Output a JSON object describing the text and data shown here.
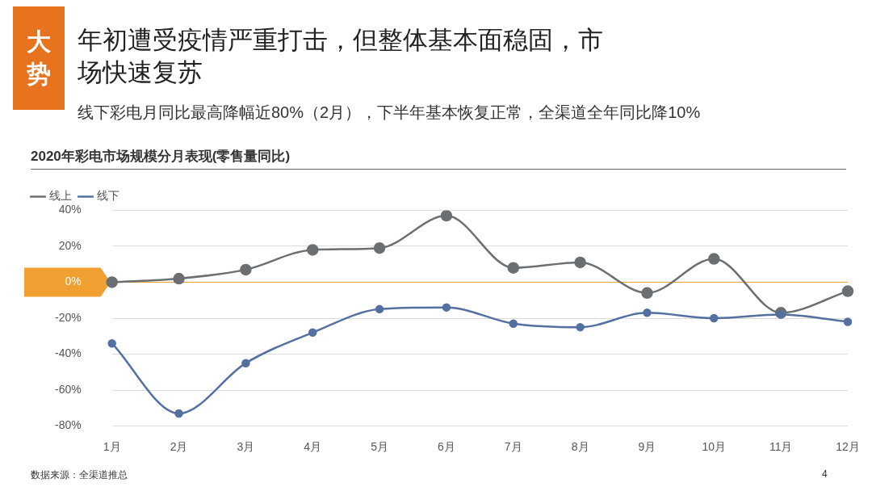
{
  "chart_data": {
    "type": "line",
    "title": "2020年彩电市场规模分月表现(零售量同比)",
    "subtitle": "线下彩电月同比最高降幅近80%（2月），下半年基本恢复正常，全渠道全年同比降10%",
    "annotations": [
      "大势",
      "年初遭受疫情严重打击，但整体基本面稳固，市场快速复苏",
      "数据来源：全渠道推总",
      "4"
    ],
    "categories": [
      "1月",
      "2月",
      "3月",
      "4月",
      "5月",
      "6月",
      "7月",
      "8月",
      "9月",
      "10月",
      "11月",
      "12月"
    ],
    "series": [
      {
        "name": "线上",
        "color": "#6b6f72",
        "values": [
          0,
          2,
          7,
          18,
          19,
          37,
          8,
          11,
          -6,
          13,
          -17,
          -5
        ]
      },
      {
        "name": "线下",
        "color": "#5470a0",
        "values": [
          -34,
          -73,
          -45,
          -28,
          -15,
          -14,
          -23,
          -25,
          -17,
          -20,
          -18,
          -22
        ]
      }
    ],
    "ylim": [
      -80,
      40
    ],
    "yticks": [
      {
        "value": 40,
        "label": "40%"
      },
      {
        "value": 20,
        "label": "20%"
      },
      {
        "value": 0,
        "label": "0%"
      },
      {
        "value": -20,
        "label": "-20%"
      },
      {
        "value": -40,
        "label": "-40%"
      },
      {
        "value": -60,
        "label": "-60%"
      },
      {
        "value": -80,
        "label": "-80%"
      }
    ],
    "ref_lines": [
      {
        "axis": "y",
        "value": 0,
        "color": "#f0a030"
      }
    ],
    "grid": "y",
    "legend": "top left",
    "marker": "circle",
    "line_style": "solid"
  }
}
